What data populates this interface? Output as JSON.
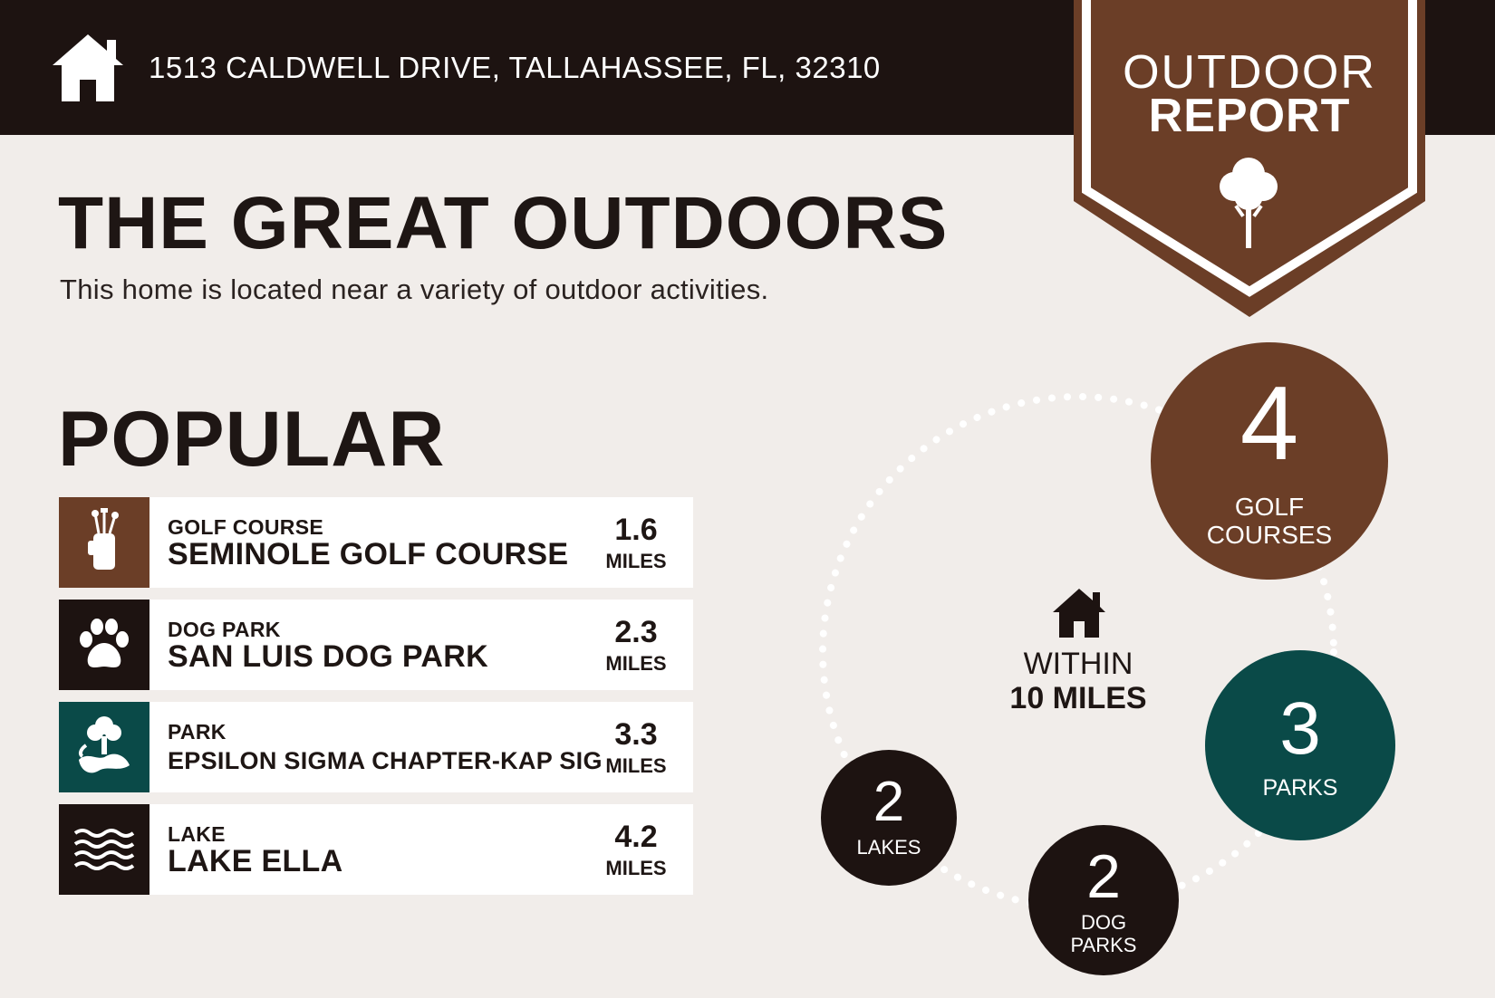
{
  "header": {
    "address": "1513 CALDWELL DRIVE, TALLAHASSEE, FL, 32310",
    "icon": "home-icon"
  },
  "badge": {
    "line1": "OUTDOOR",
    "line2": "REPORT",
    "icon": "tree-icon",
    "color": "#6b3e27"
  },
  "intro": {
    "title": "THE GREAT OUTDOORS",
    "subtitle": "This home is located near a variety of outdoor activities."
  },
  "popular": {
    "heading": "POPULAR",
    "items": [
      {
        "category": "GOLF COURSE",
        "name": "SEMINOLE GOLF COURSE",
        "distance": "1.6",
        "unit": "MILES",
        "icon": "golf-bag-icon",
        "color": "#6b3e27"
      },
      {
        "category": "DOG PARK",
        "name": "SAN LUIS DOG PARK",
        "distance": "2.3",
        "unit": "MILES",
        "icon": "paw-icon",
        "color": "#1d1311"
      },
      {
        "category": "PARK",
        "name": "EPSILON SIGMA CHAPTER-KAP SIG",
        "distance": "3.3",
        "unit": "MILES",
        "icon": "park-icon",
        "color": "#0a4a48"
      },
      {
        "category": "LAKE",
        "name": "LAKE ELLA",
        "distance": "4.2",
        "unit": "MILES",
        "icon": "waves-icon",
        "color": "#1d1311"
      }
    ]
  },
  "summary": {
    "within_line1": "WITHIN",
    "within_line2": "10 MILES",
    "golf": {
      "count": "4",
      "label_line1": "GOLF",
      "label_line2": "COURSES",
      "color": "#6b3e27"
    },
    "parks": {
      "count": "3",
      "label": "PARKS",
      "color": "#0a4a48"
    },
    "dog_parks": {
      "count": "2",
      "label_line1": "DOG",
      "label_line2": "PARKS",
      "color": "#1d1311"
    },
    "lakes": {
      "count": "2",
      "label": "LAKES",
      "color": "#1d1311"
    }
  }
}
